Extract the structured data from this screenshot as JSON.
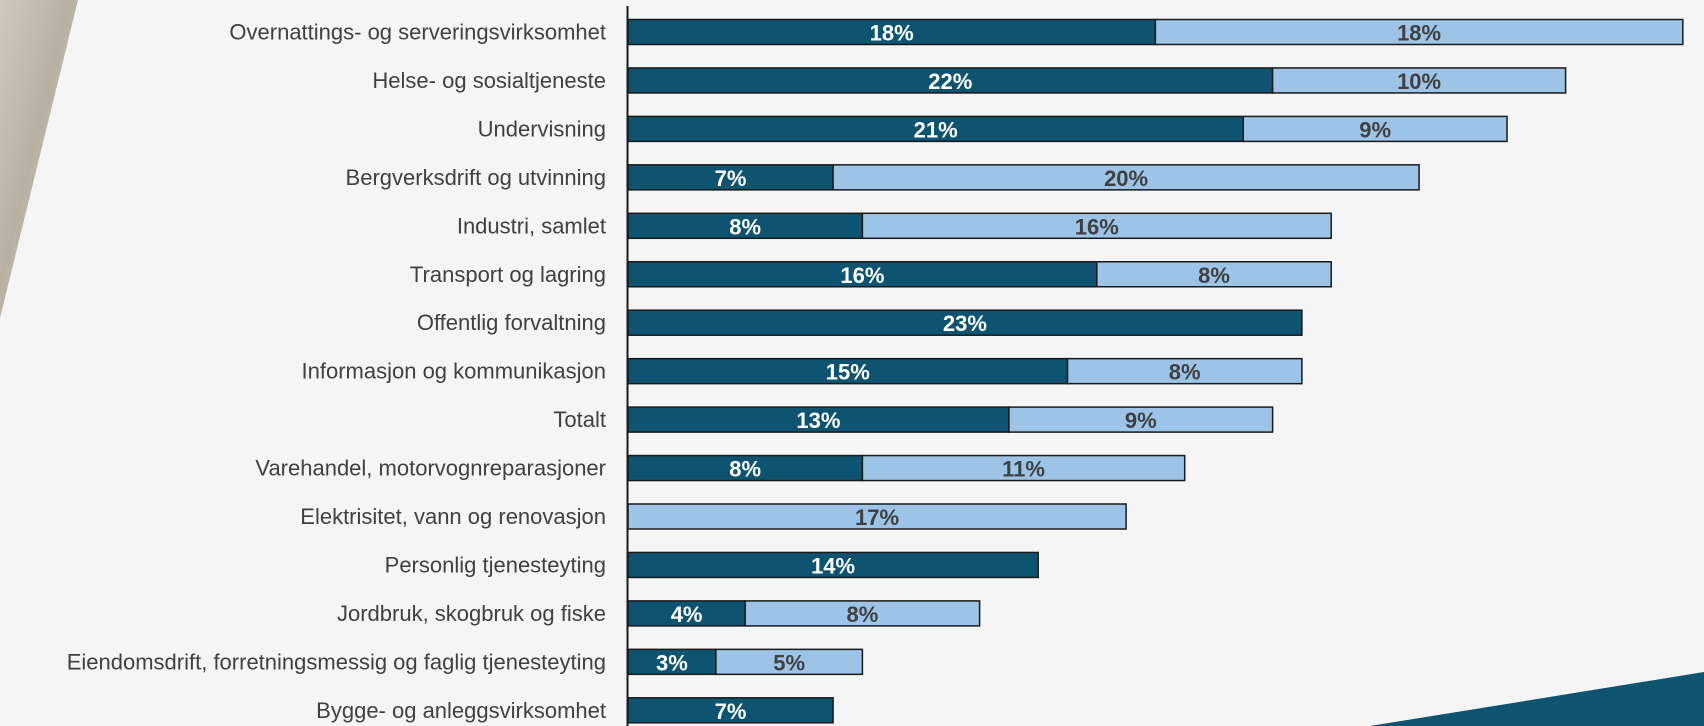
{
  "colors": {
    "background": "#f5f5f5",
    "series_dark": "#0e5470",
    "series_light": "#9dc3e6",
    "bar_border": "#1a1a1a",
    "label_on_dark": "#ffffff",
    "label_on_light": "#404040",
    "category_text": "#404040",
    "decor_teal": "#0e5470"
  },
  "chart_data": {
    "type": "bar",
    "orientation": "horizontal",
    "stacked": true,
    "title": "",
    "xlabel": "",
    "ylabel": "",
    "legend": "none",
    "grid": false,
    "xlim": [
      0,
      40
    ],
    "categories": [
      "Overnattings- og serveringsvirksomhet",
      "Helse- og sosialtjeneste",
      "Undervisning",
      "Bergverksdrift og utvinning",
      "Industri, samlet",
      "Transport og lagring",
      "Offentlig forvaltning",
      "Informasjon og kommunikasjon",
      "Totalt",
      "Varehandel, motorvognreparasjoner",
      "Elektrisitet, vann og renovasjon",
      "Personlig tjenesteyting",
      "Jordbruk, skogbruk og fiske",
      "Eiendomsdrift, forretningsmessig og faglig tjenesteyting",
      "Bygge- og anleggsvirksomhet"
    ],
    "series": [
      {
        "color": "#0e5470",
        "values": [
          18,
          22,
          21,
          7,
          8,
          16,
          23,
          15,
          13,
          8,
          0,
          14,
          4,
          3,
          7
        ],
        "labels": [
          "18%",
          "22%",
          "21%",
          "7%",
          "8%",
          "16%",
          "23%",
          "15%",
          "13%",
          "8%",
          "",
          "14%",
          "4%",
          "3%",
          "7%"
        ]
      },
      {
        "color": "#9dc3e6",
        "values": [
          18,
          10,
          9,
          20,
          16,
          8,
          0,
          8,
          9,
          11,
          17,
          0,
          8,
          5,
          0
        ],
        "labels": [
          "18%",
          "10%",
          "9%",
          "20%",
          "16%",
          "8%",
          "",
          "8%",
          "9%",
          "11%",
          "17%",
          "",
          "8%",
          "5%",
          ""
        ]
      }
    ]
  }
}
